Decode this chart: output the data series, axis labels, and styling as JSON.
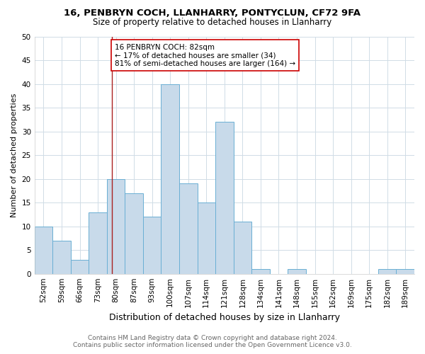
{
  "title1": "16, PENBRYN COCH, LLANHARRY, PONTYCLUN, CF72 9FA",
  "title2": "Size of property relative to detached houses in Llanharry",
  "xlabel": "Distribution of detached houses by size in Llanharry",
  "ylabel": "Number of detached properties",
  "footer1": "Contains HM Land Registry data © Crown copyright and database right 2024.",
  "footer2": "Contains public sector information licensed under the Open Government Licence v3.0.",
  "bins": [
    "52sqm",
    "59sqm",
    "66sqm",
    "73sqm",
    "80sqm",
    "87sqm",
    "93sqm",
    "100sqm",
    "107sqm",
    "114sqm",
    "121sqm",
    "128sqm",
    "134sqm",
    "141sqm",
    "148sqm",
    "155sqm",
    "162sqm",
    "169sqm",
    "175sqm",
    "182sqm",
    "189sqm"
  ],
  "values": [
    10,
    7,
    3,
    13,
    20,
    17,
    12,
    40,
    19,
    15,
    32,
    11,
    1,
    0,
    1,
    0,
    0,
    0,
    0,
    1,
    1
  ],
  "bar_color": "#c8daea",
  "bar_edge_color": "#6aafd4",
  "grid_color": "#d0dce6",
  "subject_line_color": "#aa2222",
  "annotation_text": "16 PENBRYN COCH: 82sqm\n← 17% of detached houses are smaller (34)\n81% of semi-detached houses are larger (164) →",
  "annotation_box_color": "#ffffff",
  "annotation_box_edge": "#cc0000",
  "ylim": [
    0,
    50
  ],
  "yticks": [
    0,
    5,
    10,
    15,
    20,
    25,
    30,
    35,
    40,
    45,
    50
  ],
  "title1_fontsize": 9.5,
  "title2_fontsize": 8.5,
  "xlabel_fontsize": 9,
  "ylabel_fontsize": 8,
  "tick_fontsize": 7.5,
  "annotation_fontsize": 7.5,
  "footer_fontsize": 6.5
}
